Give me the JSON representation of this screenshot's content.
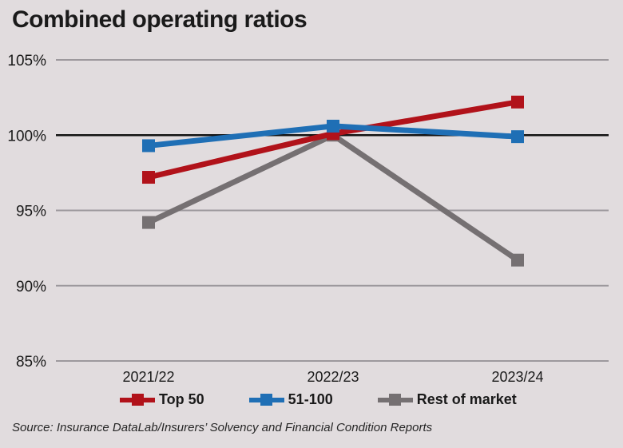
{
  "header": {
    "title": "Combined operating ratios"
  },
  "chart_data": {
    "type": "line",
    "title": "Combined operating ratios",
    "categories": [
      "2021/22",
      "2022/23",
      "2023/24"
    ],
    "series": [
      {
        "name": "Top 50",
        "color": "#b1121a",
        "values": [
          97.2,
          100.1,
          102.2
        ]
      },
      {
        "name": "51-100",
        "color": "#1f6fb5",
        "values": [
          99.3,
          100.6,
          99.9
        ]
      },
      {
        "name": "Rest of market",
        "color": "#757072",
        "values": [
          94.2,
          100.0,
          91.7
        ]
      }
    ],
    "xlabel": "",
    "ylabel": "",
    "ylim": [
      85,
      105
    ],
    "yticks": [
      105,
      100,
      95,
      90,
      85
    ],
    "ytick_labels": [
      "105%",
      "100%",
      "95%",
      "90%",
      "85%"
    ],
    "emphasized_gridline": 100,
    "grid": true,
    "legend_position": "bottom"
  },
  "footer": {
    "source": "Source: Insurance DataLab/Insurers’ Solvency and Financial Condition Reports"
  },
  "colors": {
    "background": "#e1dcde",
    "gridline": "#9d999d",
    "baseline": "#131313",
    "text": "#1a1a1a"
  }
}
